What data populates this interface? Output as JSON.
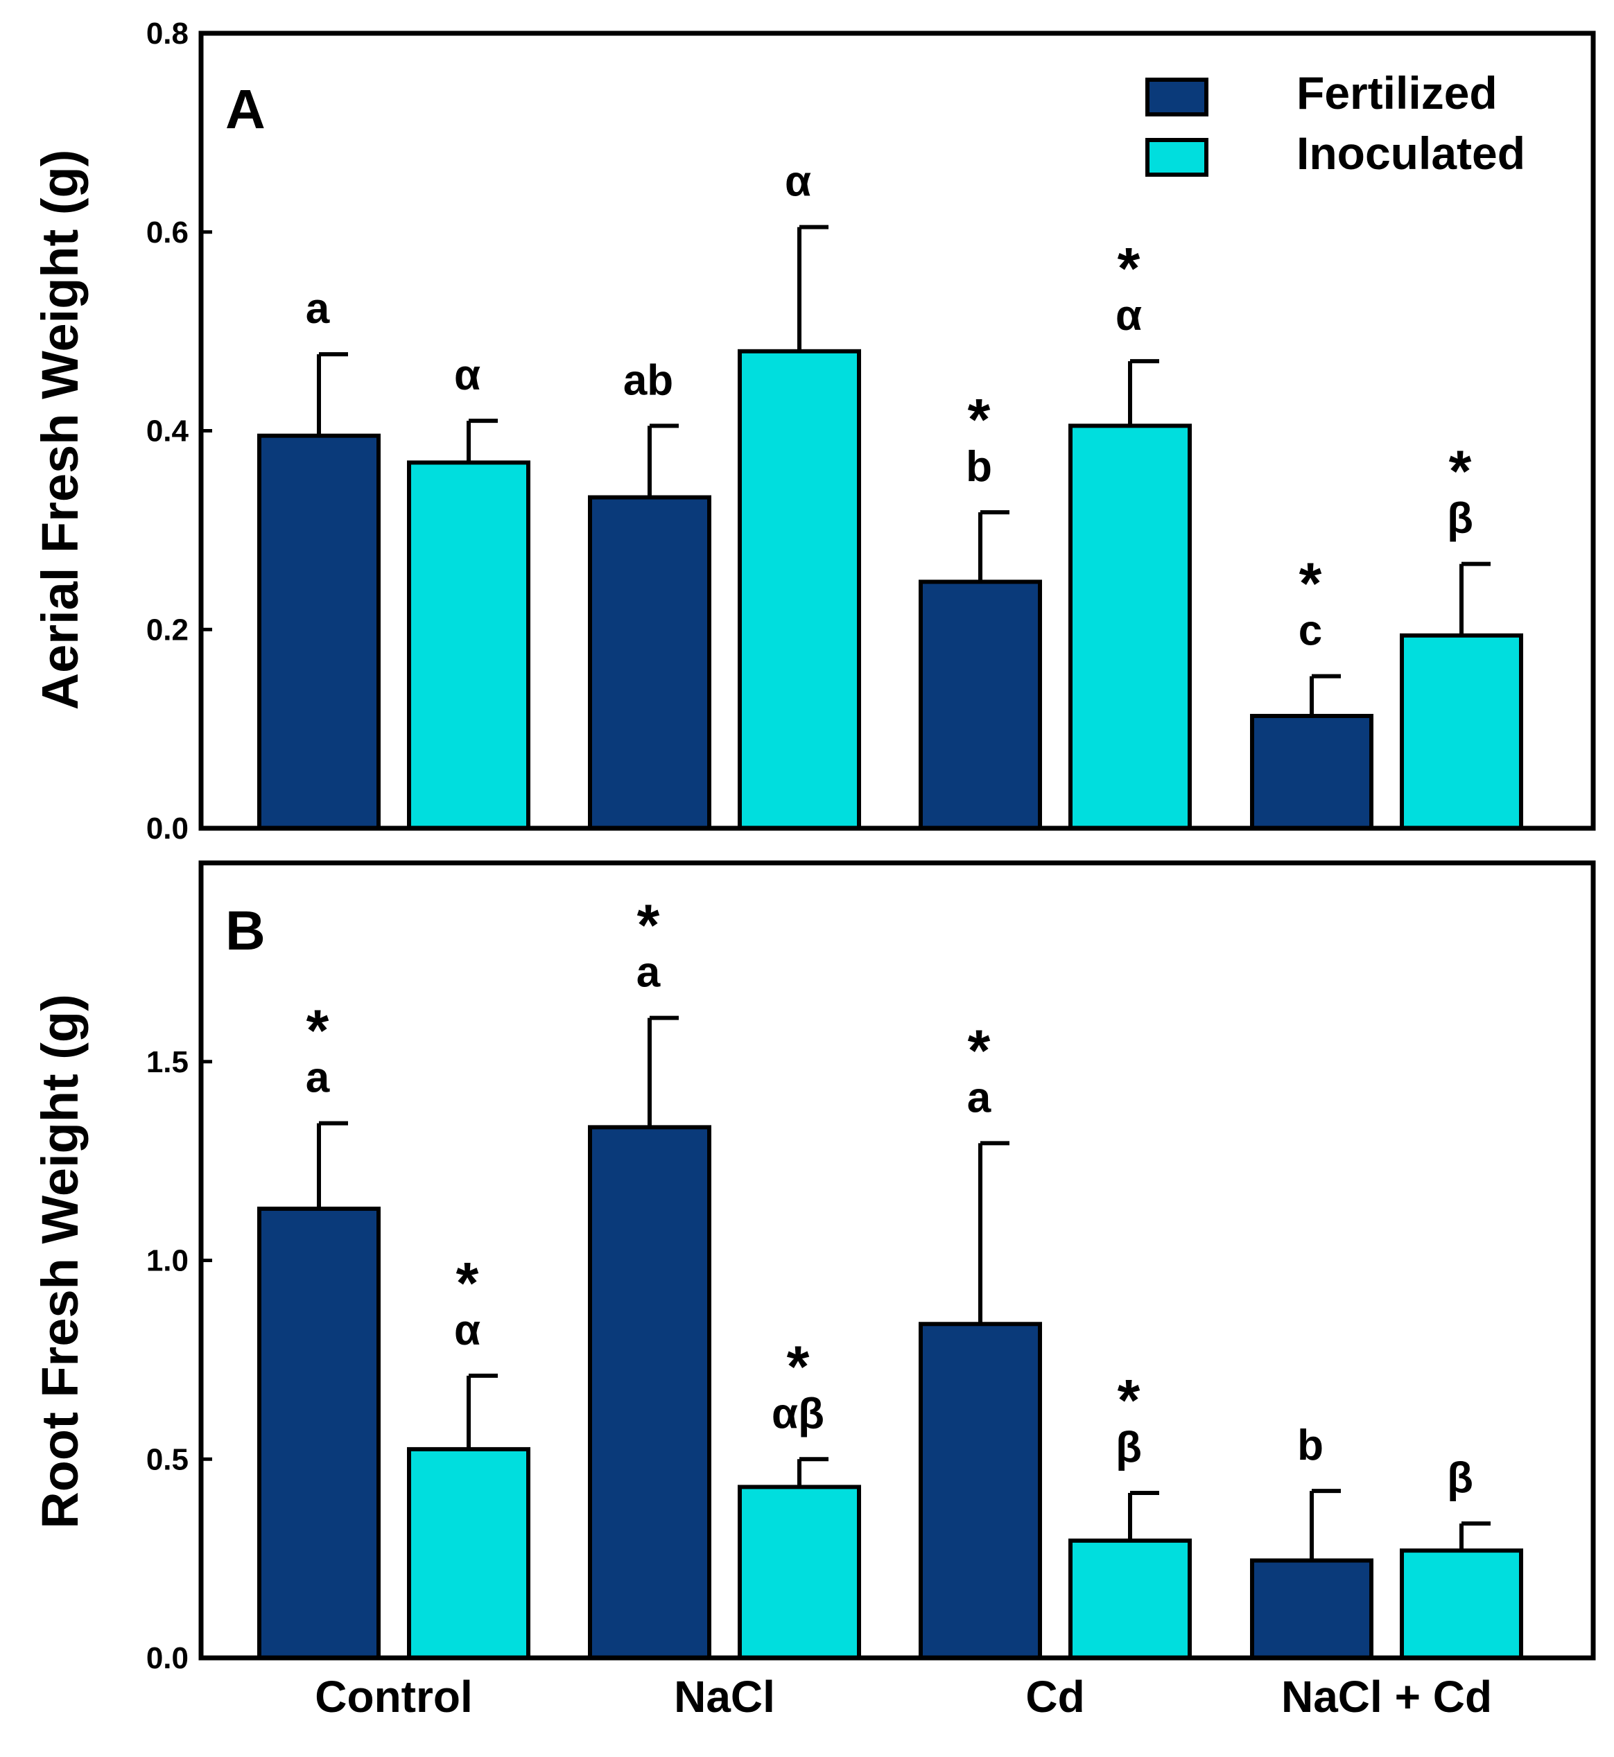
{
  "colors": {
    "fertilized": "#0a3a7a",
    "inoculated": "#00dede",
    "axis": "#000000"
  },
  "legend": {
    "items": [
      {
        "label": "Fertilized",
        "color": "#0a3a7a"
      },
      {
        "label": "Inoculated",
        "color": "#00dede"
      }
    ]
  },
  "chart_data": [
    {
      "type": "bar",
      "panel_label": "A",
      "ylabel": "Aerial Fresh Weight (g)",
      "xlabel": "",
      "categories": [
        "Control",
        "NaCl",
        "Cd",
        "NaCl + Cd"
      ],
      "ylim": [
        0,
        0.8
      ],
      "yticks": [
        0.0,
        0.2,
        0.4,
        0.6,
        0.8
      ],
      "ytick_labels": [
        "0.0",
        "0.2",
        "0.4",
        "0.6",
        "0.8"
      ],
      "legend_position": "top-right",
      "series": [
        {
          "name": "Fertilized",
          "values": [
            0.395,
            0.333,
            0.248,
            0.113
          ],
          "errors": [
            0.082,
            0.072,
            0.07,
            0.04
          ],
          "annotations": [
            "a",
            "ab",
            "* b",
            "* c"
          ]
        },
        {
          "name": "Inoculated",
          "values": [
            0.368,
            0.48,
            0.405,
            0.194
          ],
          "errors": [
            0.042,
            0.125,
            0.065,
            0.072
          ],
          "annotations": [
            "α",
            "α",
            "* α",
            "* β"
          ]
        }
      ]
    },
    {
      "type": "bar",
      "panel_label": "B",
      "ylabel": "Root Fresh Weight (g)",
      "xlabel": "",
      "categories": [
        "Control",
        "NaCl",
        "Cd",
        "NaCl + Cd"
      ],
      "ylim": [
        0,
        2.0
      ],
      "yticks": [
        0.0,
        0.5,
        1.0,
        1.5
      ],
      "ytick_labels": [
        "0.0",
        "0.5",
        "1.0",
        "1.5"
      ],
      "series": [
        {
          "name": "Fertilized",
          "values": [
            1.13,
            1.335,
            0.84,
            0.245
          ],
          "errors": [
            0.215,
            0.275,
            0.455,
            0.175
          ],
          "annotations": [
            "* a",
            "* a",
            "* a",
            "b"
          ]
        },
        {
          "name": "Inoculated",
          "values": [
            0.525,
            0.43,
            0.295,
            0.27
          ],
          "errors": [
            0.185,
            0.07,
            0.12,
            0.068
          ],
          "annotations": [
            "* α",
            "* αβ",
            "* β",
            "β"
          ]
        }
      ]
    }
  ]
}
